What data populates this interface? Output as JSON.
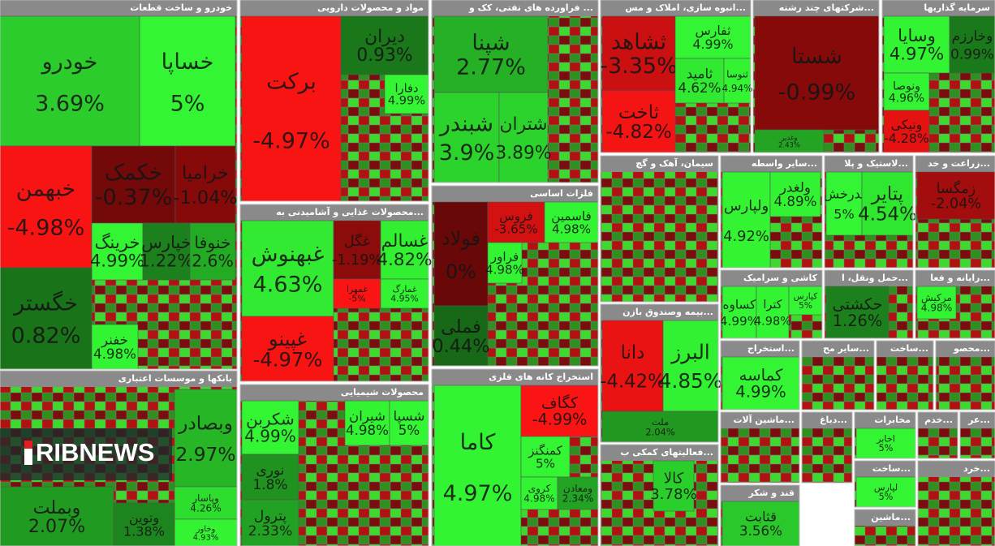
{
  "chart_data": {
    "type": "treemap",
    "sectors": [
      {
        "title": "خودرو و ساخت قطعات",
        "tiles": [
          {
            "name": "خودرو",
            "value": 3.69,
            "value_label": "3.69%"
          },
          {
            "name": "خساپا",
            "value": 5,
            "value_label": "5%"
          },
          {
            "name": "خبهمن",
            "value": -4.98,
            "value_label": "-4.98%"
          },
          {
            "name": "خکمک",
            "value": -0.37,
            "value_label": "-0.37%"
          },
          {
            "name": "خرامیا",
            "value": -1.04,
            "value_label": "-1.04%"
          },
          {
            "name": "خرینگ",
            "value": 4.99,
            "value_label": "4.99%"
          },
          {
            "name": "خپارس",
            "value": 1.22,
            "value_label": "1.22%"
          },
          {
            "name": "خنوفا",
            "value": 2.6,
            "value_label": "2.6%"
          },
          {
            "name": "خگستر",
            "value": 0.82,
            "value_label": "0.82%"
          },
          {
            "name": "خفنر",
            "value": 4.98,
            "value_label": "4.98%"
          }
        ]
      },
      {
        "title": "بانکها و موسسات اعتباری",
        "tiles": [
          {
            "name": "وبصادر",
            "value": 2.97,
            "value_label": "2.97%"
          },
          {
            "name": "وبملت",
            "value": 2.07,
            "value_label": "2.07%"
          },
          {
            "name": "وپاسار",
            "value": 4.26,
            "value_label": "4.26%"
          },
          {
            "name": "وخاور",
            "value": 4.93,
            "value_label": "4.93%"
          },
          {
            "name": "وتوین",
            "value": 1.38,
            "value_label": "1.38%"
          }
        ]
      },
      {
        "title": "مواد و محصولات دارویی",
        "tiles": [
          {
            "name": "برکت",
            "value": -4.97,
            "value_label": "-4.97%"
          },
          {
            "name": "دیران",
            "value": 0.93,
            "value_label": "0.93%"
          },
          {
            "name": "دفارا",
            "value": 4.99,
            "value_label": "4.99%"
          }
        ]
      },
      {
        "title": "محصولات غذایی و آشامیدنی به...",
        "tiles": [
          {
            "name": "غبهنوش",
            "value": 4.63,
            "value_label": "4.63%"
          },
          {
            "name": "غپینو",
            "value": -4.97,
            "value_label": "-4.97%"
          },
          {
            "name": "غگل",
            "value": -1.19,
            "value_label": "-1.19%"
          },
          {
            "name": "غسالم",
            "value": 4.82,
            "value_label": "4.82%"
          },
          {
            "name": "غمهرا",
            "value": -5,
            "value_label": "-5%"
          },
          {
            "name": "غمارگ",
            "value": 4.95,
            "value_label": "4.95%"
          }
        ]
      },
      {
        "title": "محصولات شیمیایی",
        "tiles": [
          {
            "name": "شکربن",
            "value": 4.99,
            "value_label": "4.99%"
          },
          {
            "name": "نوری",
            "value": 1.8,
            "value_label": "1.8%"
          },
          {
            "name": "پترول",
            "value": 2.33,
            "value_label": "2.33%"
          },
          {
            "name": "شیران",
            "value": 4.98,
            "value_label": "4.98%"
          },
          {
            "name": "شسپا",
            "value": 5,
            "value_label": "5%"
          }
        ]
      },
      {
        "title": "فراورده های نفتی، کک و ...",
        "tiles": [
          {
            "name": "شپنا",
            "value": 2.77,
            "value_label": "2.77%"
          },
          {
            "name": "شبندر",
            "value": 3.9,
            "value_label": "3.9%"
          },
          {
            "name": "شتران",
            "value": 3.89,
            "value_label": "3.89%"
          }
        ]
      },
      {
        "title": "فلزات اساسی",
        "tiles": [
          {
            "name": "فولاد",
            "value": 0,
            "value_label": "0%"
          },
          {
            "name": "فملی",
            "value": 0.44,
            "value_label": "0.44%"
          },
          {
            "name": "فروس",
            "value": -3.65,
            "value_label": "-3.65%"
          },
          {
            "name": "فاسمین",
            "value": 4.98,
            "value_label": "4.98%"
          },
          {
            "name": "فراور",
            "value": 4.98,
            "value_label": "4.98%"
          }
        ]
      },
      {
        "title": "استخراج کانه های فلزی",
        "tiles": [
          {
            "name": "کاما",
            "value": 4.97,
            "value_label": "4.97%"
          },
          {
            "name": "کگاف",
            "value": -4.99,
            "value_label": "-4.99%"
          },
          {
            "name": "کمنگنز",
            "value": 5,
            "value_label": "5%"
          },
          {
            "name": "کروی",
            "value": 4.98,
            "value_label": "4.98%"
          },
          {
            "name": "ومعادن",
            "value": 2.34,
            "value_label": "2.34%"
          }
        ]
      },
      {
        "title": "انبوه سازی، املاک و مس...",
        "tiles": [
          {
            "name": "ثشاهد",
            "value": -3.35,
            "value_label": "-3.35%"
          },
          {
            "name": "ثفارس",
            "value": 4.99,
            "value_label": "4.99%"
          },
          {
            "name": "ثاخت",
            "value": -4.82,
            "value_label": "-4.82%"
          },
          {
            "name": "ثامید",
            "value": 4.62,
            "value_label": "4.62%"
          },
          {
            "name": "ثنوسا",
            "value": 4.94,
            "value_label": "4.94%"
          }
        ]
      },
      {
        "title": "شرکتهای چند رشته...",
        "tiles": [
          {
            "name": "شستا",
            "value": -0.99,
            "value_label": "-0.99%"
          },
          {
            "name": "وغدیر",
            "value": 2.43,
            "value_label": "2.43%"
          }
        ]
      },
      {
        "title": "سرمایه گذاریها",
        "tiles": [
          {
            "name": "وسایا",
            "value": 4.97,
            "value_label": "4.97%"
          },
          {
            "name": "وخارزم",
            "value": 0.99,
            "value_label": "0.99%"
          },
          {
            "name": "ونوصا",
            "value": 4.96,
            "value_label": "4.96%"
          },
          {
            "name": "ونیکی",
            "value": -4.28,
            "value_label": "-4.28%"
          }
        ]
      },
      {
        "title": "سیمان، آهک و گچ",
        "tiles": []
      },
      {
        "title": "سایر واسطه...",
        "tiles": [
          {
            "name": "ولپارس",
            "value": 4.92,
            "value_label": "4.92%"
          },
          {
            "name": "ولغدر",
            "value": 4.89,
            "value_label": "4.89%"
          }
        ]
      },
      {
        "title": "لاستیک و پلا...",
        "tiles": [
          {
            "name": "پدرخش",
            "value": 5,
            "value_label": "5%"
          },
          {
            "name": "پتایر",
            "value": 4.54,
            "value_label": "4.54%"
          }
        ]
      },
      {
        "title": "زراعت و خد...",
        "tiles": [
          {
            "name": "زمگسا",
            "value": -2.04,
            "value_label": "-2.04%"
          }
        ]
      },
      {
        "title": "بیمه وصندوق بازن...",
        "tiles": [
          {
            "name": "دانا",
            "value": -4.42,
            "value_label": "-4.42%"
          },
          {
            "name": "البرز",
            "value": 4.85,
            "value_label": "4.85%"
          },
          {
            "name": "ملت",
            "value": 2.04,
            "value_label": "2.04%"
          }
        ]
      },
      {
        "title": "فعالیتهای کمکی ب...",
        "tiles": [
          {
            "name": "کالا",
            "value": 3.78,
            "value_label": "3.78%"
          }
        ]
      },
      {
        "title": "کاشی و سرامیک",
        "tiles": [
          {
            "name": "کساوه",
            "value": 4.99,
            "value_label": "4.99%"
          },
          {
            "name": "کترا",
            "value": 4.98,
            "value_label": "4.98%"
          },
          {
            "name": "کپارس",
            "value": 5,
            "value_label": "5%"
          }
        ]
      },
      {
        "title": "حمل ونقل، ا...",
        "tiles": [
          {
            "name": "حکشتی",
            "value": 1.26,
            "value_label": "1.26%"
          }
        ]
      },
      {
        "title": "رایانه و فعا...",
        "tiles": [
          {
            "name": "مرکیش",
            "value": 4.98,
            "value_label": "4.98%"
          }
        ]
      },
      {
        "title": "استخراج...",
        "tiles": [
          {
            "name": "کماسه",
            "value": 4.99,
            "value_label": "4.99%"
          }
        ]
      },
      {
        "title": "سایر مح...",
        "tiles": []
      },
      {
        "title": "ساخت...",
        "tiles": []
      },
      {
        "title": "محصو...",
        "tiles": []
      },
      {
        "title": "ماشین آلات...",
        "tiles": []
      },
      {
        "title": "دباغ...",
        "tiles": []
      },
      {
        "title": "مخابرات",
        "tiles": [
          {
            "name": "اخابر",
            "value": 5,
            "value_label": "5%"
          }
        ]
      },
      {
        "title": "خدم...",
        "tiles": []
      },
      {
        "title": "عر...",
        "tiles": []
      },
      {
        "title": "ساخت...",
        "tiles": [
          {
            "name": "لپارس",
            "value": 5,
            "value_label": "5%"
          }
        ]
      },
      {
        "title": "قند و شکر",
        "tiles": [
          {
            "name": "قثابت",
            "value": 3.56,
            "value_label": "3.56%"
          }
        ]
      },
      {
        "title": "ماشین...",
        "tiles": []
      },
      {
        "title": "خرد...",
        "tiles": []
      }
    ]
  },
  "watermark": "RIBNEWS"
}
